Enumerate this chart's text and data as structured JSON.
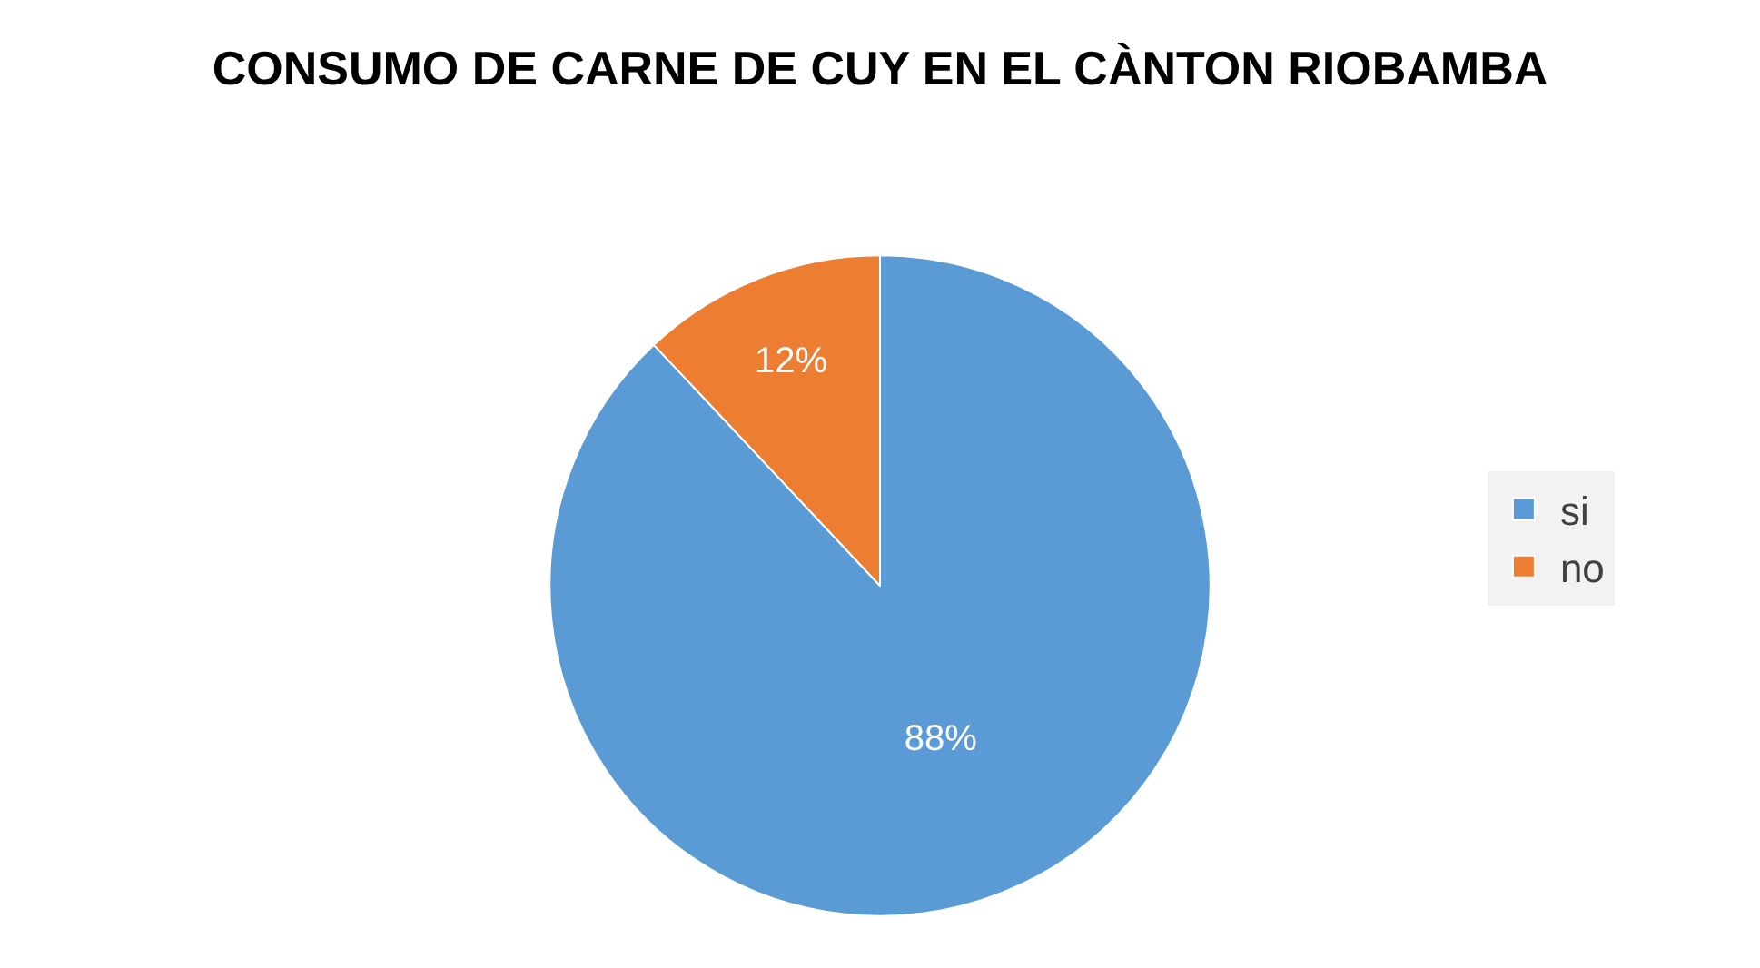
{
  "chart_data": {
    "type": "pie",
    "title": "CONSUMO DE CARNE DE CUY EN EL CÀNTON RIOBAMBA",
    "categories": [
      "si",
      "no"
    ],
    "values": [
      88,
      12
    ],
    "value_labels": [
      "88%",
      "12%"
    ],
    "colors": [
      "#5b9bd5",
      "#ed7d31"
    ],
    "legend": "right"
  }
}
